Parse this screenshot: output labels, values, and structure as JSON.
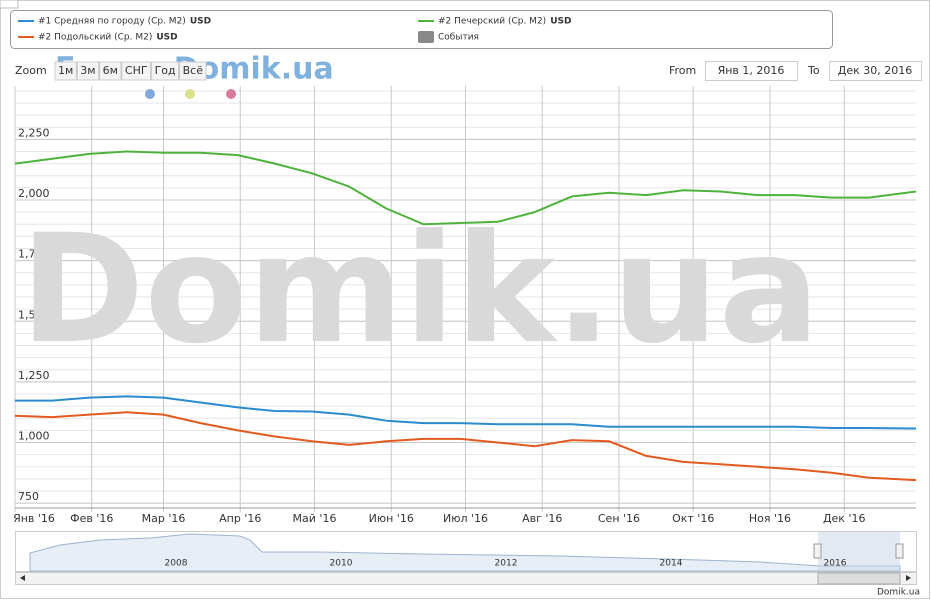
{
  "chart_data": {
    "type": "line",
    "unit": "USD",
    "zoom_label": "Zoom",
    "zoom_buttons": [
      "1м",
      "3м",
      "6м",
      "СНГ",
      "Год",
      "Всё"
    ],
    "from_label": "From",
    "from_value": "Янв 1, 2016",
    "to_label": "To",
    "to_value": "Дек 30, 2016",
    "events_label": "События",
    "events_color": "#888888",
    "watermark": "Domik.ua",
    "watermark_forum": "Forum.Domik.ua",
    "credit": "Domik.ua",
    "navigator_years": [
      2008,
      2010,
      2012,
      2014,
      2016
    ],
    "x": [
      0,
      15,
      30,
      45,
      60,
      75,
      90,
      105,
      120,
      135,
      150,
      165,
      180,
      195,
      210,
      225,
      240,
      255,
      270,
      285,
      300,
      315,
      330,
      345,
      364
    ],
    "xlim": [
      0,
      364
    ],
    "xticks": [
      {
        "value": 0,
        "label": "Янв '16"
      },
      {
        "value": 31,
        "label": "Фев '16"
      },
      {
        "value": 60,
        "label": "Мар '16"
      },
      {
        "value": 91,
        "label": "Апр '16"
      },
      {
        "value": 121,
        "label": "Май '16"
      },
      {
        "value": 152,
        "label": "Июн '16"
      },
      {
        "value": 182,
        "label": "Июл '16"
      },
      {
        "value": 213,
        "label": "Авг '16"
      },
      {
        "value": 244,
        "label": "Сен '16"
      },
      {
        "value": 274,
        "label": "Окт '16"
      },
      {
        "value": 305,
        "label": "Ноя '16"
      },
      {
        "value": 335,
        "label": "Дек '16"
      }
    ],
    "ylim": [
      730,
      2470
    ],
    "yticks": [
      750,
      {
        "value": 1000,
        "label": "1,000"
      },
      {
        "value": 1250,
        "label": "1,250"
      },
      {
        "value": 1500,
        "label": "1,500"
      },
      {
        "value": 1750,
        "label": "1,750"
      },
      {
        "value": 2000,
        "label": "2,000"
      },
      {
        "value": 2250,
        "label": "2,250"
      }
    ],
    "minor_tick_interval": 50,
    "grid": true,
    "series": [
      {
        "name": "#1 Средняя по городу (Ср. М2)",
        "color": "#2a8ccf",
        "values": [
          1173,
          1173,
          1185,
          1190,
          1185,
          1165,
          1145,
          1130,
          1128,
          1115,
          1090,
          1080,
          1080,
          1075,
          1075,
          1075,
          1065,
          1065,
          1065,
          1065,
          1065,
          1065,
          1060,
          1060,
          1058
        ]
      },
      {
        "name": "#2 Подольский (Ср. М2)",
        "color": "#e35a1e",
        "values": [
          1110,
          1105,
          1115,
          1125,
          1115,
          1080,
          1050,
          1025,
          1005,
          990,
          1005,
          1015,
          1015,
          1000,
          985,
          1010,
          1005,
          945,
          920,
          910,
          900,
          890,
          875,
          855,
          845
        ]
      },
      {
        "name": "#2 Печерский (Ср. М2)",
        "color": "#4eb33d",
        "values": [
          2150,
          2170,
          2190,
          2200,
          2195,
          2195,
          2185,
          2150,
          2110,
          2055,
          1965,
          1900,
          1905,
          1910,
          1950,
          2015,
          2030,
          2020,
          2040,
          2035,
          2020,
          2020,
          2010,
          2010,
          2035
        ]
      }
    ]
  }
}
